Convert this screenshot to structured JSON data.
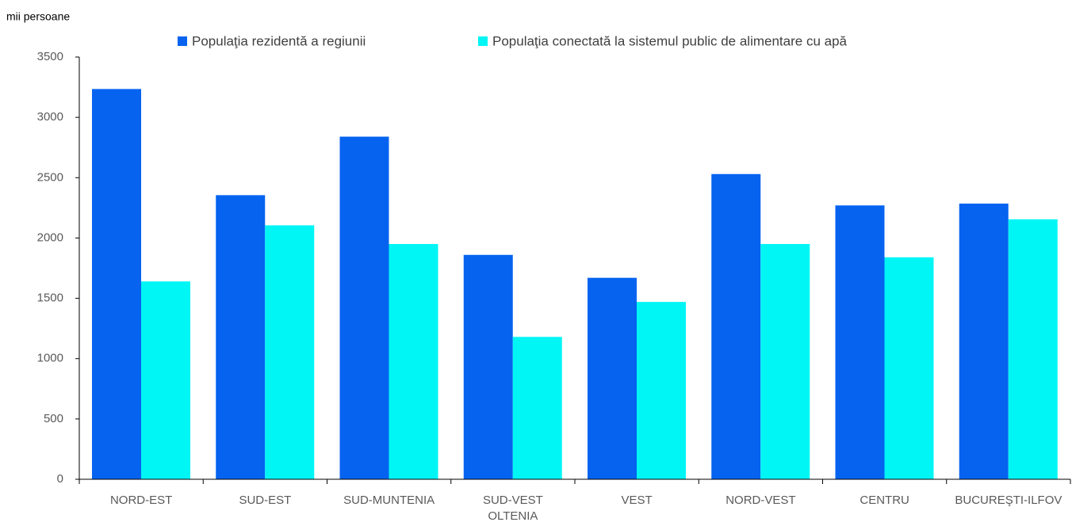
{
  "chart_data": {
    "type": "bar",
    "ylabel": "mii persoane",
    "categories": [
      "NORD-EST",
      "SUD-EST",
      "SUD-MUNTENIA",
      "SUD-VEST\nOLTENIA",
      "VEST",
      "NORD-VEST",
      "CENTRU",
      "BUCUREŞTI-ILFOV"
    ],
    "series": [
      {
        "name": "Populaţia rezidentă a regiunii",
        "color": "#0563f0",
        "values": [
          3235,
          2355,
          2840,
          1860,
          1670,
          2530,
          2270,
          2285
        ]
      },
      {
        "name": "Populaţia conectată la sistemul public de alimentare cu apă",
        "color": "#00f5f5",
        "values": [
          1640,
          2105,
          1950,
          1180,
          1470,
          1950,
          1840,
          2155
        ]
      }
    ],
    "ylim": [
      0,
      3500
    ],
    "yticks": [
      0,
      500,
      1000,
      1500,
      2000,
      2500,
      3000,
      3500
    ],
    "grid": false
  }
}
